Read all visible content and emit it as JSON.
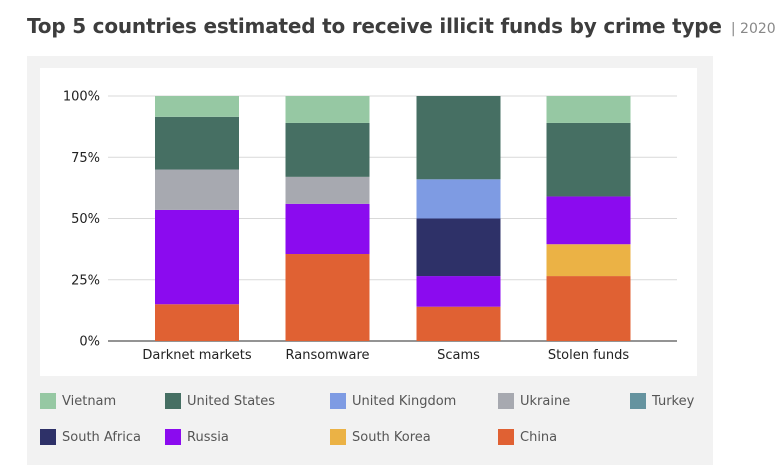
{
  "title": "Top 5 countries estimated to receive illicit funds by crime type",
  "year": "| 2020",
  "chart_data": {
    "type": "bar",
    "stacked": true,
    "categories": [
      "Darknet markets",
      "Ransomware",
      "Scams",
      "Stolen funds"
    ],
    "y_ticks": [
      "0%",
      "25%",
      "50%",
      "75%",
      "100%"
    ],
    "ylim": [
      0,
      100
    ],
    "grid": true,
    "legend_position": "bottom",
    "series": [
      {
        "name": "China",
        "color": "#e06133",
        "values": [
          15,
          35.5,
          14,
          26.5
        ]
      },
      {
        "name": "South Korea",
        "color": "#ebb245",
        "values": [
          0,
          0,
          0,
          13
        ]
      },
      {
        "name": "Russia",
        "color": "#8b0bef",
        "values": [
          38.5,
          20.5,
          12.5,
          19.5
        ]
      },
      {
        "name": "South Africa",
        "color": "#2e3168",
        "values": [
          0,
          0,
          23.5,
          0
        ]
      },
      {
        "name": "Turkey",
        "color": "#65939f",
        "values": [
          0,
          0,
          0,
          0
        ]
      },
      {
        "name": "Ukraine",
        "color": "#a7a9b0",
        "values": [
          16.5,
          11,
          0,
          0
        ]
      },
      {
        "name": "United Kingdom",
        "color": "#7e9be3",
        "values": [
          0,
          0,
          16,
          0
        ]
      },
      {
        "name": "United States",
        "color": "#466f63",
        "values": [
          21.5,
          22,
          34,
          30
        ]
      },
      {
        "name": "Vietnam",
        "color": "#96c8a3",
        "values": [
          8.5,
          11,
          0,
          11
        ]
      }
    ]
  },
  "legend": {
    "rows": [
      [
        "Vietnam",
        "United States",
        "United Kingdom",
        "Ukraine",
        "Turkey"
      ],
      [
        "South Africa",
        "Russia",
        "South Korea",
        "China"
      ]
    ]
  }
}
